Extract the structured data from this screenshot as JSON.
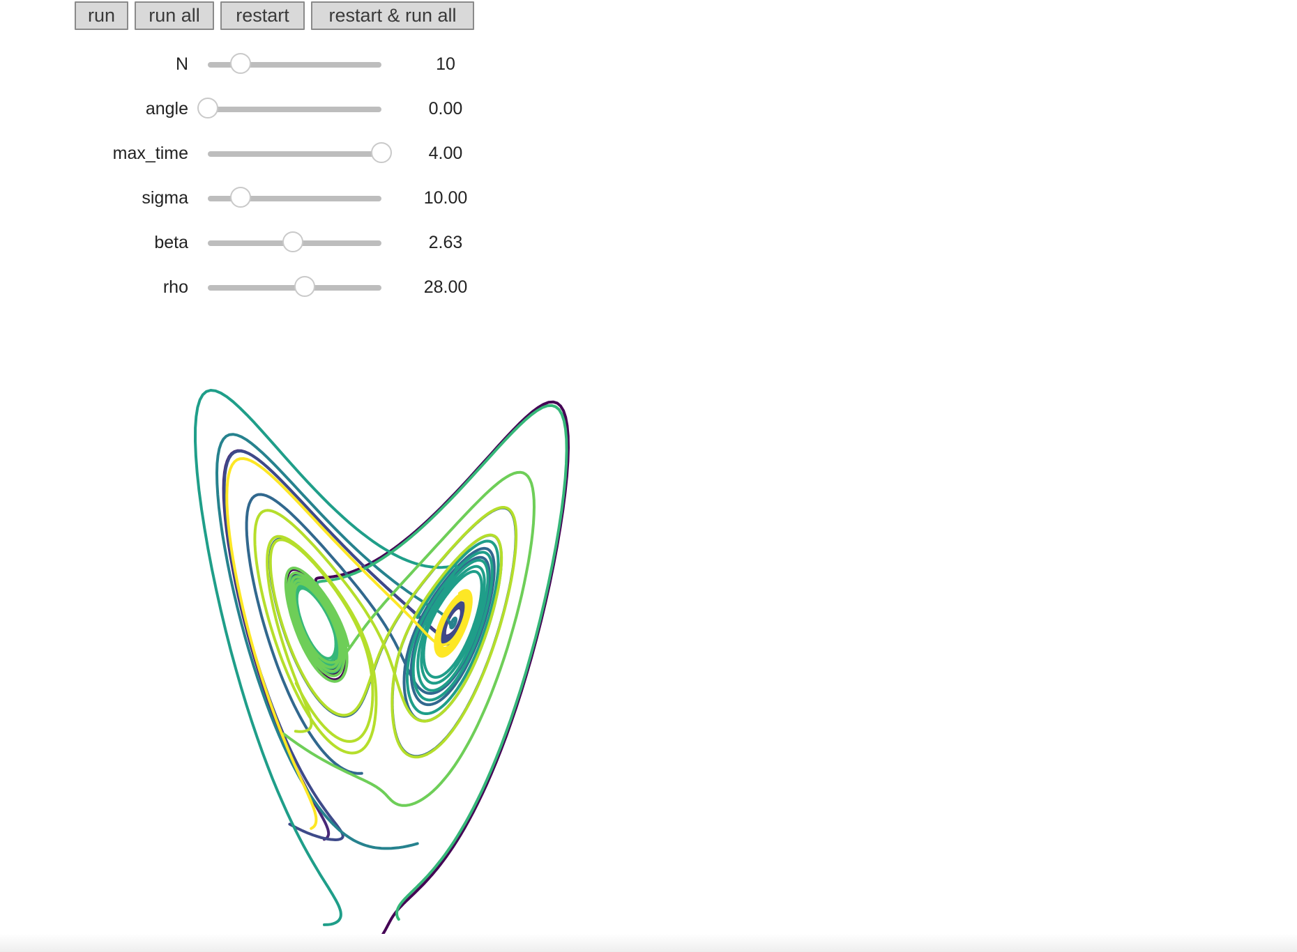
{
  "toolbar": {
    "buttons": [
      {
        "label": "run"
      },
      {
        "label": "run all"
      },
      {
        "label": "restart"
      },
      {
        "label": "restart & run all"
      }
    ]
  },
  "controls": [
    {
      "label": "N",
      "display": "10",
      "fraction": 0.19
    },
    {
      "label": "angle",
      "display": "0.00",
      "fraction": 0.0
    },
    {
      "label": "max_time",
      "display": "4.00",
      "fraction": 1.0
    },
    {
      "label": "sigma",
      "display": "10.00",
      "fraction": 0.19
    },
    {
      "label": "beta",
      "display": "2.63",
      "fraction": 0.49
    },
    {
      "label": "rho",
      "display": "28.00",
      "fraction": 0.56
    }
  ],
  "plot": {
    "description_type": "lorenz-attractor-trajectories",
    "colormap": "viridis",
    "trajectory_colors": [
      "#440154",
      "#482878",
      "#3e4a89",
      "#31688e",
      "#26828e",
      "#1f9e89",
      "#35b779",
      "#6ece58",
      "#b5de2b",
      "#fde725"
    ]
  }
}
